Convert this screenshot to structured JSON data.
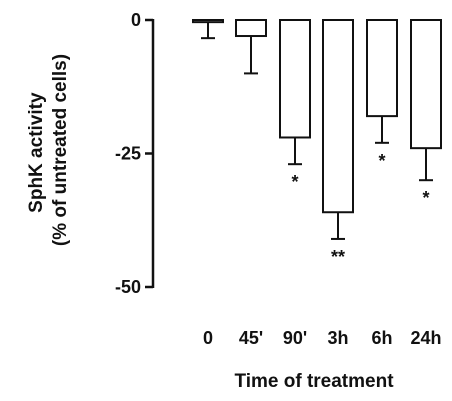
{
  "chart_data": {
    "type": "bar",
    "title": "",
    "ylabel_line1": "SphK activity",
    "ylabel_line2": "(% of untreated cells)",
    "xlabel": "Time of treatment",
    "ylim": [
      -50,
      0
    ],
    "yticks": [
      0,
      -25,
      -50
    ],
    "ytick_labels": [
      "0",
      "-25",
      "-50"
    ],
    "categories": [
      "0",
      "45'",
      "90'",
      "3h",
      "6h",
      "24h"
    ],
    "values": [
      -0.4,
      -3,
      -22,
      -36,
      -18,
      -24
    ],
    "errors": [
      3,
      7,
      5,
      5,
      5,
      6
    ],
    "significance": [
      "",
      "",
      "*",
      "**",
      "*",
      "*"
    ],
    "bar_fill": "#ffffff",
    "bar_stroke": "#111111"
  }
}
